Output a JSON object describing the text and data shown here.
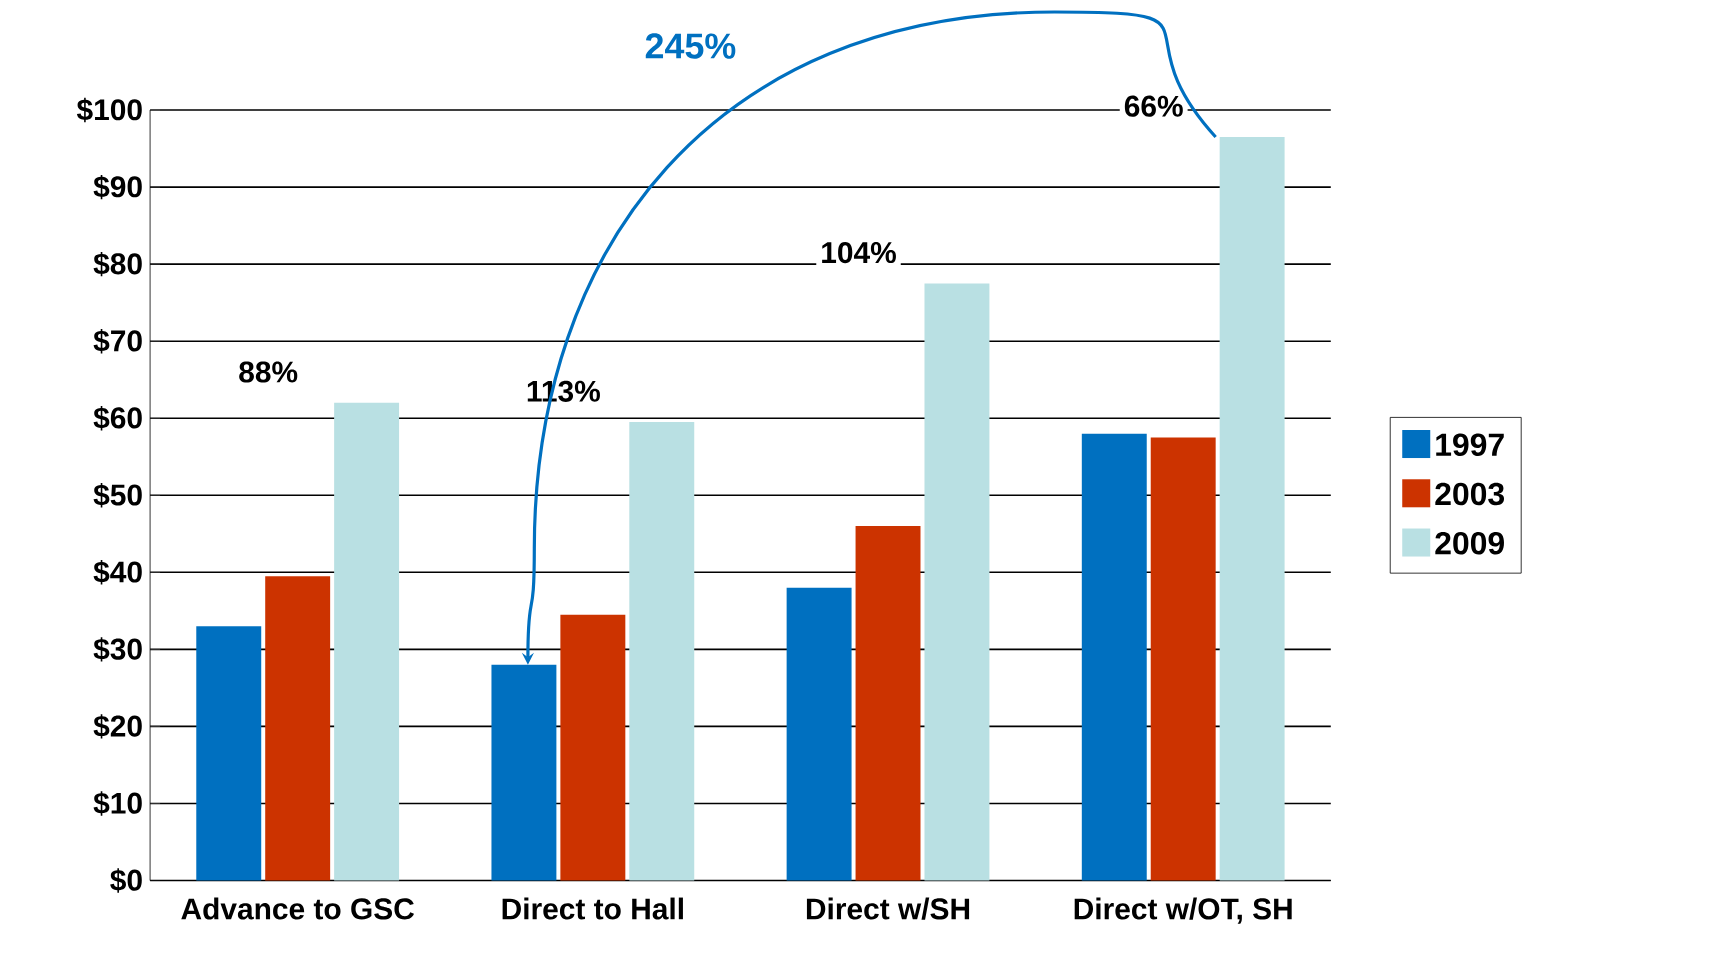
{
  "chart_data": {
    "type": "bar",
    "categories": [
      "Advance to GSC",
      "Direct to Hall",
      "Direct w/SH",
      "Direct w/OT, SH"
    ],
    "series": [
      {
        "name": "1997",
        "color": "#0070c0",
        "values": [
          33,
          28,
          38,
          58
        ]
      },
      {
        "name": "2003",
        "color": "#cc3300",
        "values": [
          39.5,
          34.5,
          46,
          57.5
        ]
      },
      {
        "name": "2009",
        "color": "#b9e0e3",
        "values": [
          62,
          59.5,
          77.5,
          96.5
        ]
      }
    ],
    "ylim": [
      0,
      100
    ],
    "yticks": [
      {
        "value": 0,
        "label": "$0"
      },
      {
        "value": 10,
        "label": "$10"
      },
      {
        "value": 20,
        "label": "$20"
      },
      {
        "value": 30,
        "label": "$30"
      },
      {
        "value": 40,
        "label": "$40"
      },
      {
        "value": 50,
        "label": "$50"
      },
      {
        "value": 60,
        "label": "$60"
      },
      {
        "value": 70,
        "label": "$70"
      },
      {
        "value": 80,
        "label": "$80"
      },
      {
        "value": 90,
        "label": "$90"
      },
      {
        "value": 100,
        "label": "$100"
      }
    ],
    "grid": "y",
    "legend": "right",
    "annotations": [
      "88%",
      "113%",
      "104%",
      "66%",
      "245%"
    ]
  }
}
